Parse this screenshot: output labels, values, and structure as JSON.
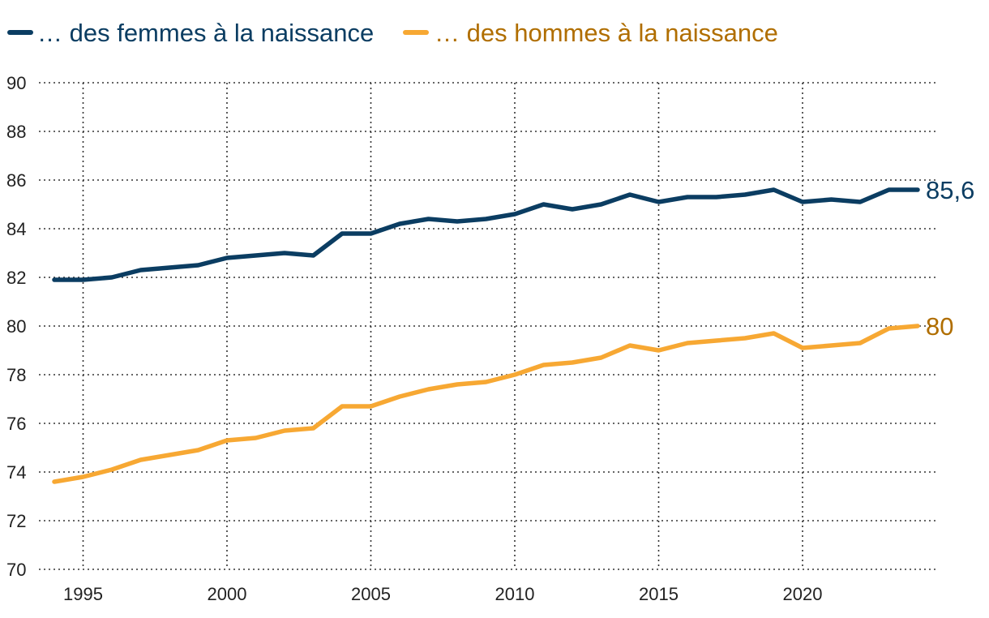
{
  "chart_data": {
    "type": "line",
    "title": "",
    "xlabel": "",
    "ylabel": "",
    "ylim": [
      70,
      90
    ],
    "xlim": [
      1994,
      2024
    ],
    "y_ticks": [
      "90",
      "88",
      "86",
      "84",
      "82",
      "80",
      "78",
      "76",
      "74",
      "72",
      "70"
    ],
    "x_ticks": [
      "1995",
      "2000",
      "2005",
      "2010",
      "2015",
      "2020"
    ],
    "grid": true,
    "legend_position": "top-left",
    "x": [
      1994,
      1995,
      1996,
      1997,
      1998,
      1999,
      2000,
      2001,
      2002,
      2003,
      2004,
      2005,
      2006,
      2007,
      2008,
      2009,
      2010,
      2011,
      2012,
      2013,
      2014,
      2015,
      2016,
      2017,
      2018,
      2019,
      2020,
      2021,
      2022,
      2023,
      2024
    ],
    "series": [
      {
        "name": "… des femmes à la naissance",
        "color": "#0b3d62",
        "end_label": "85,6",
        "values": [
          81.9,
          81.9,
          82.0,
          82.3,
          82.4,
          82.5,
          82.8,
          82.9,
          83.0,
          82.9,
          83.8,
          83.8,
          84.2,
          84.4,
          84.3,
          84.4,
          84.6,
          85.0,
          84.8,
          85.0,
          85.4,
          85.1,
          85.3,
          85.3,
          85.4,
          85.6,
          85.1,
          85.2,
          85.1,
          85.6,
          85.6
        ]
      },
      {
        "name": "… des hommes à la naissance",
        "color": "#f7a833",
        "label_color": "#b06e00",
        "end_label": "80",
        "values": [
          73.6,
          73.8,
          74.1,
          74.5,
          74.7,
          74.9,
          75.3,
          75.4,
          75.7,
          75.8,
          76.7,
          76.7,
          77.1,
          77.4,
          77.6,
          77.7,
          78.0,
          78.4,
          78.5,
          78.7,
          79.2,
          79.0,
          79.3,
          79.4,
          79.5,
          79.7,
          79.1,
          79.2,
          79.3,
          79.9,
          80.0
        ]
      }
    ]
  }
}
